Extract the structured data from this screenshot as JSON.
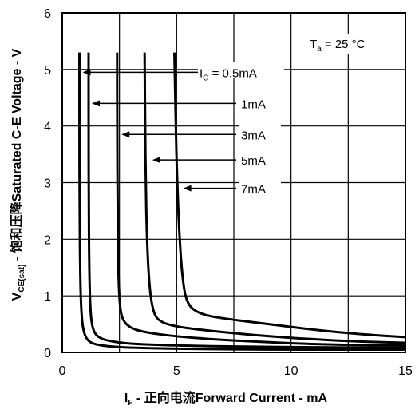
{
  "chart_data": {
    "type": "line",
    "xlabel": {
      "main": "I",
      "sub": "F",
      "rest": " - 正向电流Forward Current - mA"
    },
    "ylabel": {
      "main": "V",
      "sub": "CE(sat)",
      "rest": " - 饱和压降Saturated C-E  Voltage - V"
    },
    "condition": {
      "main": "T",
      "sub": "a",
      "rest": " = 25 °C"
    },
    "xlim": [
      0,
      15
    ],
    "ylim": [
      0,
      6
    ],
    "x_ticks": [
      0,
      5,
      10,
      15
    ],
    "y_ticks": [
      0,
      1,
      2,
      3,
      4,
      5,
      6
    ],
    "grid": true,
    "series": [
      {
        "label": {
          "main": "I",
          "sub": "C",
          "rest": " = 0.5mA"
        },
        "x": [
          0.75,
          0.75,
          0.76,
          0.78,
          0.82,
          0.9,
          1.1,
          1.5,
          2.5,
          4,
          6,
          9,
          12,
          15
        ],
        "y": [
          5.3,
          4.0,
          2.5,
          1.5,
          0.8,
          0.4,
          0.2,
          0.13,
          0.09,
          0.07,
          0.06,
          0.05,
          0.05,
          0.05
        ]
      },
      {
        "label": {
          "main": "1mA",
          "sub": "",
          "rest": ""
        },
        "x": [
          1.15,
          1.15,
          1.16,
          1.18,
          1.22,
          1.3,
          1.5,
          2,
          3,
          5,
          8,
          11,
          15
        ],
        "y": [
          5.3,
          4.0,
          2.5,
          1.5,
          0.8,
          0.45,
          0.28,
          0.2,
          0.15,
          0.12,
          0.1,
          0.09,
          0.08
        ]
      },
      {
        "label": {
          "main": "3mA",
          "sub": "",
          "rest": ""
        },
        "x": [
          2.4,
          2.4,
          2.42,
          2.45,
          2.5,
          2.6,
          2.9,
          3.5,
          5,
          7,
          10,
          12.5,
          15
        ],
        "y": [
          5.3,
          4.0,
          2.5,
          1.5,
          0.9,
          0.6,
          0.45,
          0.36,
          0.28,
          0.22,
          0.16,
          0.13,
          0.12
        ]
      },
      {
        "label": {
          "main": "5mA",
          "sub": "",
          "rest": ""
        },
        "x": [
          3.6,
          3.62,
          3.65,
          3.7,
          3.8,
          3.95,
          4.2,
          5,
          6.5,
          8.5,
          11,
          13,
          15
        ],
        "y": [
          5.3,
          4.0,
          3.0,
          2.0,
          1.2,
          0.75,
          0.55,
          0.45,
          0.38,
          0.3,
          0.23,
          0.19,
          0.17
        ]
      },
      {
        "label": {
          "main": "7mA",
          "sub": "",
          "rest": ""
        },
        "x": [
          4.9,
          4.95,
          5.0,
          5.1,
          5.25,
          5.45,
          6,
          7,
          9,
          11,
          13,
          15
        ],
        "y": [
          5.3,
          4.3,
          3.3,
          2.2,
          1.3,
          0.85,
          0.68,
          0.6,
          0.5,
          0.4,
          0.32,
          0.27
        ]
      }
    ],
    "label_arrows": [
      {
        "x": 0.75,
        "y": 4.95,
        "label_y": 4.95
      },
      {
        "x": 1.15,
        "y": 4.4,
        "label_y": 4.4
      },
      {
        "x": 2.45,
        "y": 3.85,
        "label_y": 3.85
      },
      {
        "x": 3.8,
        "y": 3.4,
        "label_y": 3.4
      },
      {
        "x": 5.15,
        "y": 2.9,
        "label_y": 2.9
      }
    ]
  }
}
